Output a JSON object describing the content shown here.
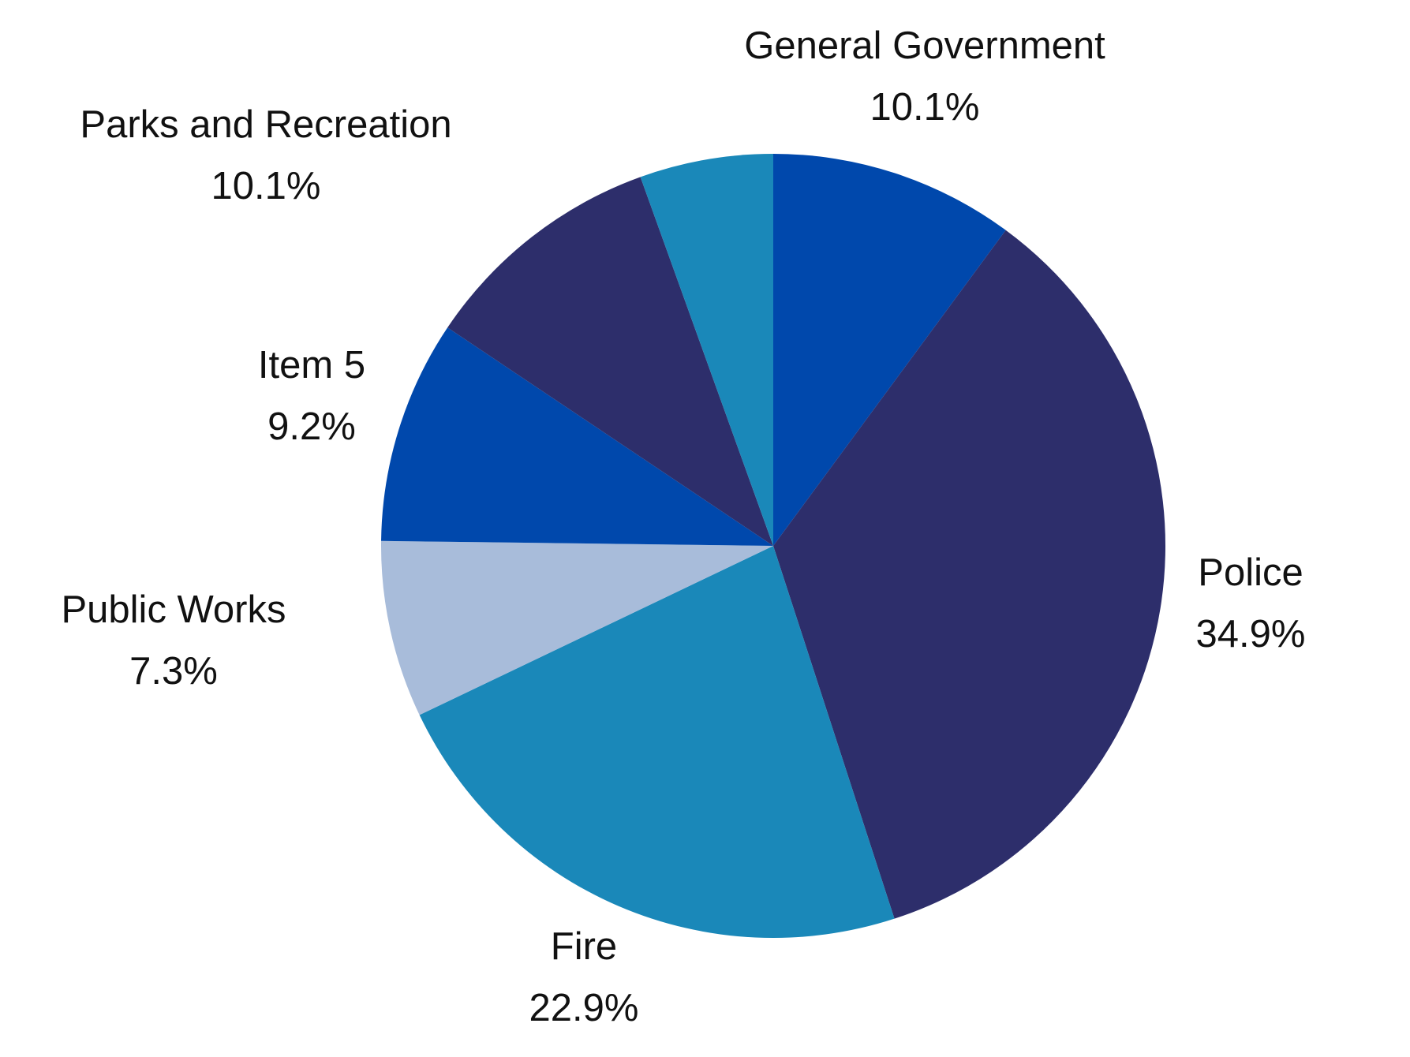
{
  "chart_data": {
    "type": "pie",
    "slices": [
      {
        "label": "General Government",
        "value": 10.1,
        "display": "10.1%",
        "color": "#0048ac"
      },
      {
        "label": "Police",
        "value": 34.9,
        "display": "34.9%",
        "color": "#2d2e6b"
      },
      {
        "label": "Fire",
        "value": 22.9,
        "display": "22.9%",
        "color": "#1a88b9"
      },
      {
        "label": "Public Works",
        "value": 7.3,
        "display": "7.3%",
        "color": "#a8bcda"
      },
      {
        "label": "Item 5",
        "value": 9.2,
        "display": "9.2%",
        "color": "#0048ac"
      },
      {
        "label": "Parks and Recreation",
        "value": 10.1,
        "display": "10.1%",
        "color": "#2d2e6b"
      },
      {
        "label": "",
        "value": 5.5,
        "display": "",
        "color": "#1a88b9"
      }
    ],
    "start_angle": "12 o'clock",
    "direction": "clockwise",
    "legend": "none"
  }
}
